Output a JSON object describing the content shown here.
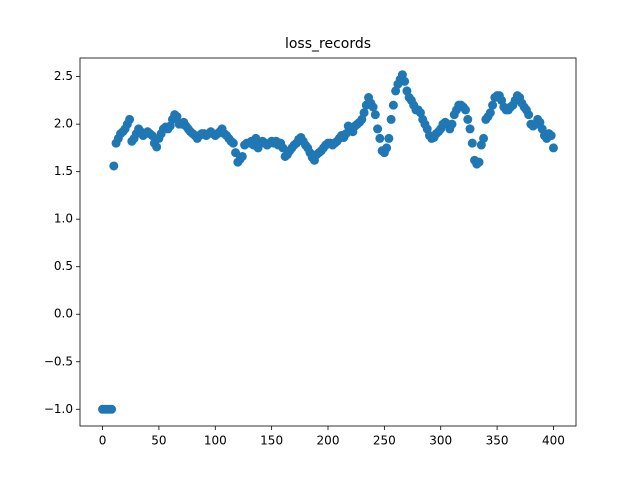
{
  "chart_data": {
    "type": "scatter",
    "title": "loss_records",
    "color": "#1f77b4",
    "x": [
      0,
      2,
      4,
      6,
      8,
      10,
      12,
      14,
      16,
      18,
      20,
      22,
      24,
      26,
      28,
      30,
      32,
      34,
      36,
      38,
      40,
      42,
      44,
      46,
      48,
      50,
      52,
      54,
      56,
      58,
      60,
      62,
      64,
      66,
      68,
      70,
      72,
      74,
      76,
      78,
      80,
      82,
      84,
      86,
      88,
      90,
      92,
      94,
      96,
      98,
      100,
      102,
      104,
      106,
      108,
      110,
      112,
      114,
      116,
      118,
      120,
      122,
      124,
      126,
      128,
      130,
      132,
      134,
      136,
      138,
      140,
      142,
      144,
      146,
      148,
      150,
      152,
      154,
      156,
      158,
      160,
      162,
      164,
      166,
      168,
      170,
      172,
      174,
      176,
      178,
      180,
      182,
      184,
      186,
      188,
      190,
      192,
      194,
      196,
      198,
      200,
      202,
      204,
      206,
      208,
      210,
      212,
      214,
      216,
      218,
      220,
      222,
      224,
      226,
      228,
      230,
      232,
      234,
      236,
      238,
      240,
      242,
      244,
      246,
      248,
      250,
      252,
      254,
      256,
      258,
      260,
      262,
      264,
      266,
      268,
      270,
      272,
      274,
      276,
      278,
      280,
      282,
      284,
      286,
      288,
      290,
      292,
      294,
      296,
      298,
      300,
      302,
      304,
      306,
      308,
      310,
      312,
      314,
      316,
      318,
      320,
      322,
      324,
      326,
      328,
      330,
      332,
      334,
      336,
      338,
      340,
      342,
      344,
      346,
      348,
      350,
      352,
      354,
      356,
      358,
      360,
      362,
      364,
      366,
      368,
      370,
      372,
      374,
      376,
      378,
      380,
      382,
      384,
      386,
      388,
      390,
      392,
      394,
      396,
      398,
      400
    ],
    "values": [
      -1,
      -1,
      -1,
      -1,
      -1,
      1.56,
      1.8,
      1.85,
      1.9,
      1.92,
      1.95,
      2.0,
      2.05,
      1.82,
      1.85,
      1.9,
      1.95,
      1.92,
      1.88,
      1.9,
      1.92,
      1.9,
      1.88,
      1.8,
      1.76,
      1.85,
      1.9,
      1.95,
      1.97,
      1.95,
      1.98,
      2.05,
      2.1,
      2.08,
      2.0,
      2.0,
      2.02,
      1.98,
      1.95,
      1.92,
      1.9,
      1.88,
      1.85,
      1.88,
      1.9,
      1.9,
      1.88,
      1.9,
      1.92,
      1.9,
      1.88,
      1.9,
      1.92,
      1.95,
      1.9,
      1.88,
      1.85,
      1.82,
      1.8,
      1.7,
      1.6,
      1.63,
      1.66,
      1.78,
      1.8,
      1.8,
      1.82,
      1.78,
      1.85,
      1.75,
      1.8,
      1.82,
      1.8,
      1.78,
      1.8,
      1.82,
      1.8,
      1.82,
      1.78,
      1.8,
      1.75,
      1.66,
      1.68,
      1.72,
      1.75,
      1.78,
      1.8,
      1.84,
      1.86,
      1.82,
      1.78,
      1.75,
      1.7,
      1.65,
      1.62,
      1.68,
      1.7,
      1.72,
      1.75,
      1.78,
      1.8,
      1.8,
      1.78,
      1.8,
      1.82,
      1.85,
      1.88,
      1.86,
      1.9,
      1.98,
      1.95,
      1.92,
      1.98,
      2.0,
      2.02,
      2.05,
      2.12,
      2.2,
      2.28,
      2.22,
      2.18,
      2.1,
      1.95,
      1.85,
      1.72,
      1.7,
      1.75,
      1.85,
      2.05,
      2.2,
      2.35,
      2.42,
      2.47,
      2.52,
      2.45,
      2.35,
      2.28,
      2.25,
      2.2,
      2.15,
      2.15,
      2.12,
      2.05,
      2.0,
      1.95,
      1.88,
      1.85,
      1.86,
      1.9,
      1.92,
      1.95,
      2.0,
      2.02,
      2.0,
      1.95,
      2.0,
      2.1,
      2.15,
      2.2,
      2.2,
      2.18,
      2.15,
      2.05,
      1.95,
      1.8,
      1.62,
      1.58,
      1.6,
      1.78,
      1.85,
      2.05,
      2.08,
      2.12,
      2.2,
      2.28,
      2.3,
      2.3,
      2.25,
      2.18,
      2.15,
      2.15,
      2.18,
      2.2,
      2.25,
      2.3,
      2.28,
      2.22,
      2.18,
      2.15,
      2.1,
      2.0,
      1.98,
      2.0,
      2.05,
      2.02,
      1.95,
      1.88,
      1.85,
      1.9,
      1.88,
      1.75
    ],
    "xlim": [
      -20,
      420
    ],
    "ylim": [
      -1.176,
      2.696
    ],
    "xticks": [
      0,
      50,
      100,
      150,
      200,
      250,
      300,
      350,
      400
    ],
    "yticks": [
      {
        "value": -1,
        "label": "−1.0"
      },
      {
        "value": -0.5,
        "label": "−0.5"
      },
      {
        "value": 0,
        "label": "0.0"
      },
      {
        "value": 0.5,
        "label": "0.5"
      },
      {
        "value": 1,
        "label": "1.0"
      },
      {
        "value": 1.5,
        "label": "1.5"
      },
      {
        "value": 2,
        "label": "2.0"
      },
      {
        "value": 2.5,
        "label": "2.5"
      }
    ]
  }
}
